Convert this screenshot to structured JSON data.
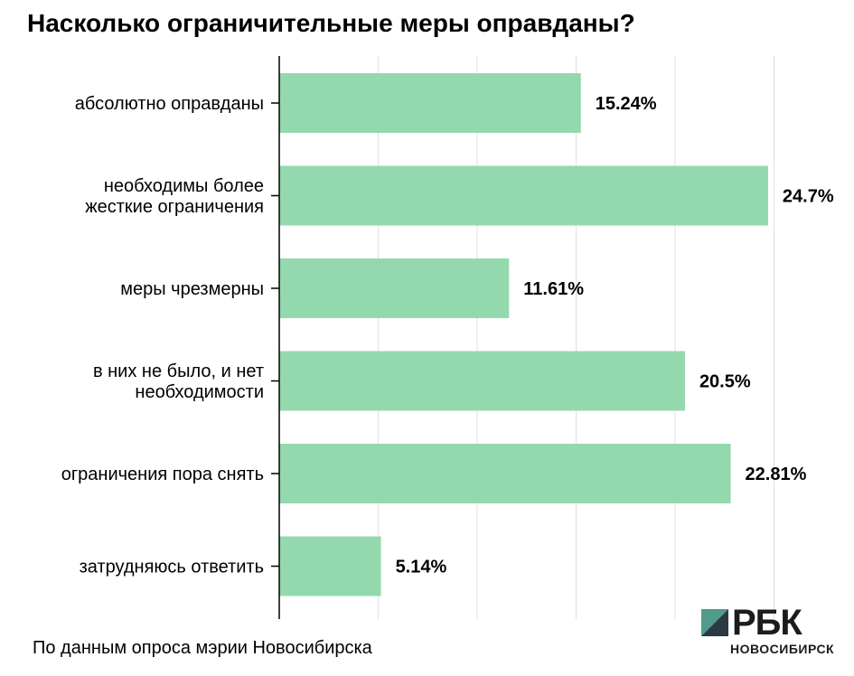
{
  "title": "Насколько ограничительные меры оправданы?",
  "source": "По данным опроса мэрии Новосибирска",
  "logo": {
    "text": "РБК",
    "subtitle": "НОВОСИБИРСК",
    "mark_colors": [
      "#4f9b8c",
      "#2b3a42"
    ]
  },
  "colors": {
    "bar": "#94d8ae",
    "grid": "#e0e0e0",
    "axis": "#000000"
  },
  "chart_data": {
    "type": "bar",
    "orientation": "horizontal",
    "title": "Насколько ограничительные меры оправданы?",
    "categories": [
      [
        "абсолютно оправданы"
      ],
      [
        "необходимы более",
        "жесткие ограничения"
      ],
      [
        "меры чрезмерны"
      ],
      [
        "в них не было, и нет",
        "необходимости"
      ],
      [
        "ограничения пора снять"
      ],
      [
        "затрудняюсь ответить"
      ]
    ],
    "values": [
      15.24,
      24.7,
      11.61,
      20.5,
      22.81,
      5.14
    ],
    "value_labels": [
      "15.24%",
      "24.7%",
      "11.61%",
      "20.5%",
      "22.81%",
      "5.14%"
    ],
    "xlim": [
      0,
      30
    ],
    "grid": true
  }
}
